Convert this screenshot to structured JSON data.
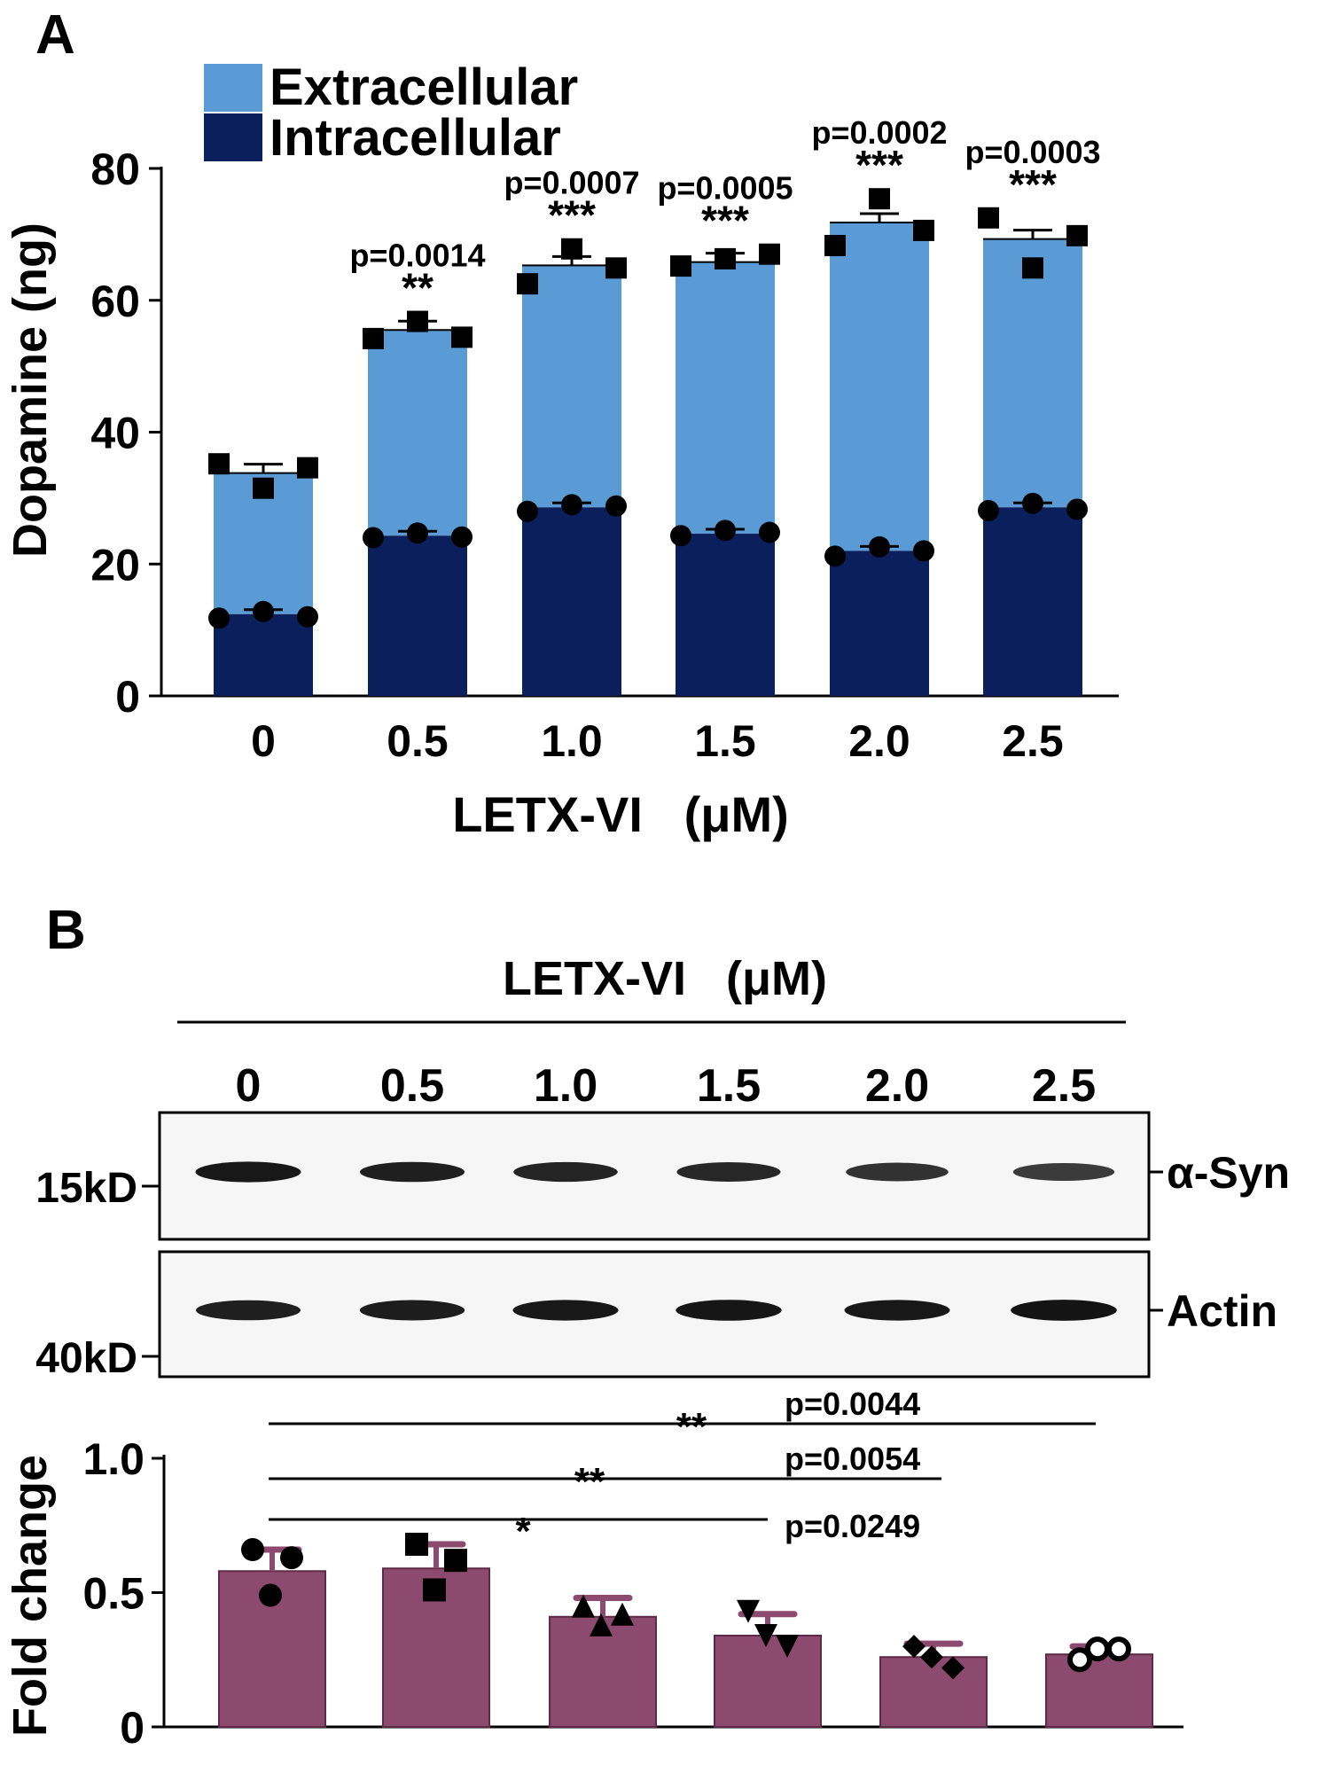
{
  "panels": {
    "a": "A",
    "b": "B"
  },
  "colors": {
    "extracellular": "#5b9bd5",
    "intracellular": "#0a1f5c",
    "fold": "#8c4a6e",
    "fold_edge": "#5e2a47",
    "mark": "#000000"
  },
  "chart_data": [
    {
      "type": "bar",
      "stacked": true,
      "categories": [
        "0",
        "0.5",
        "1.0",
        "1.5",
        "2.0",
        "2.5"
      ],
      "series": [
        {
          "name": "Intracellular",
          "values": [
            12.4,
            24.3,
            28.6,
            24.6,
            22.0,
            28.6
          ],
          "points": [
            [
              11.8,
              12.8,
              12.0
            ],
            [
              24.0,
              24.7,
              24.1
            ],
            [
              28.0,
              29.0,
              28.8
            ],
            [
              24.3,
              25.1,
              24.8
            ],
            [
              21.2,
              22.6,
              22.0
            ],
            [
              28.1,
              29.2,
              28.3
            ]
          ]
        },
        {
          "name": "Extracellular",
          "values": [
            21.4,
            31.2,
            36.7,
            41.2,
            49.8,
            40.7
          ],
          "points": [
            [
              35.2,
              31.5,
              34.6
            ],
            [
              54.2,
              56.8,
              54.4
            ],
            [
              62.5,
              67.8,
              64.9
            ],
            [
              65.2,
              66.3,
              67.0
            ],
            [
              68.3,
              75.4,
              70.6
            ],
            [
              72.5,
              64.9,
              69.8
            ]
          ]
        }
      ],
      "ylabel": "Dopamine (ng)",
      "xlabel": "LETX-VI   (μM)",
      "ylim": [
        0,
        80
      ],
      "yticks": [
        "0",
        "20",
        "40",
        "60",
        "80"
      ],
      "legend_placement": "top-left",
      "annotations": [
        {
          "index": 1,
          "stars": "**",
          "p": "p=0.0014"
        },
        {
          "index": 2,
          "stars": "***",
          "p": "p=0.0007"
        },
        {
          "index": 3,
          "stars": "***",
          "p": "p=0.0005"
        },
        {
          "index": 4,
          "stars": "***",
          "p": "p=0.0002"
        },
        {
          "index": 5,
          "stars": "***",
          "p": "p=0.0003"
        }
      ]
    },
    {
      "type": "bar",
      "categories": [
        "0",
        "0.5",
        "1.0",
        "1.5",
        "2.0",
        "2.5"
      ],
      "values": [
        0.58,
        0.59,
        0.41,
        0.34,
        0.26,
        0.27
      ],
      "errors": [
        0.08,
        0.09,
        0.07,
        0.08,
        0.05,
        0.03
      ],
      "points": [
        [
          0.66,
          0.63,
          0.49
        ],
        [
          0.68,
          0.62,
          0.51
        ],
        [
          0.45,
          0.42,
          0.38
        ],
        [
          0.43,
          0.3,
          0.34
        ],
        [
          0.3,
          0.22,
          0.26
        ],
        [
          0.25,
          0.29,
          0.29
        ]
      ],
      "markers": [
        "circle",
        "square",
        "triangle-up",
        "triangle-down",
        "diamond",
        "open-circle"
      ],
      "ylabel": "Fold change",
      "ylim": [
        0,
        1.0
      ],
      "yticks": [
        "0",
        "0.5",
        "1.0"
      ],
      "comparisons": [
        {
          "from": 0,
          "to": 5,
          "stars": "**",
          "p": "p=0.0044"
        },
        {
          "from": 0,
          "to": 4,
          "stars": "**",
          "p": "p=0.0054"
        },
        {
          "from": 0,
          "to": 3,
          "stars": "*",
          "p": "p=0.0249"
        }
      ]
    }
  ],
  "blot": {
    "header": "LETX-VI   (μM)",
    "lanes": [
      "0",
      "0.5",
      "1.0",
      "1.5",
      "2.0",
      "2.5"
    ],
    "rows": [
      {
        "label": "α-Syn",
        "marker": "15kD",
        "band_intensity": [
          0.95,
          0.9,
          0.88,
          0.85,
          0.78,
          0.72
        ]
      },
      {
        "label": "Actin",
        "marker": "40kD",
        "band_intensity": [
          0.9,
          0.92,
          0.95,
          0.97,
          0.95,
          0.98
        ]
      }
    ]
  }
}
